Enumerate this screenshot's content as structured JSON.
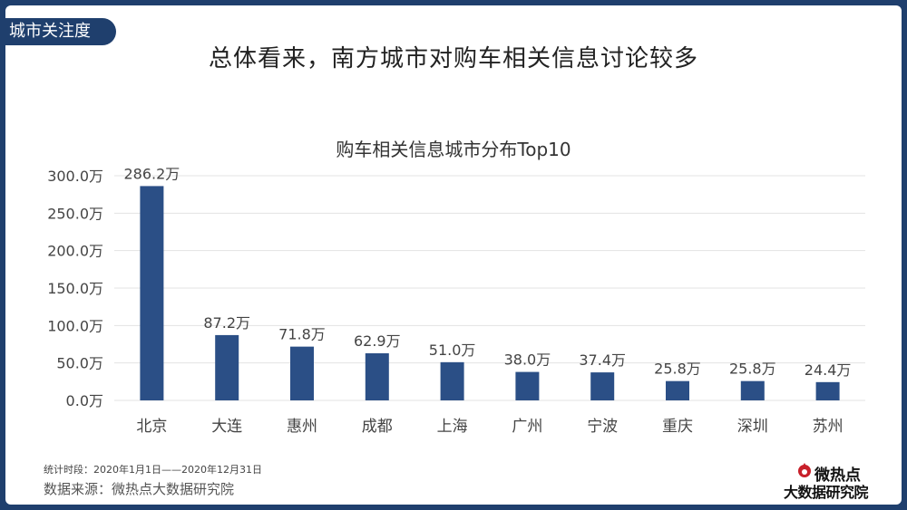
{
  "header": {
    "section_tab": "城市关注度",
    "headline": "总体看来，南方城市对购车相关信息讨论较多"
  },
  "chart_data": {
    "type": "bar",
    "title": "购车相关信息城市分布Top10",
    "categories": [
      "北京",
      "大连",
      "惠州",
      "成都",
      "上海",
      "广州",
      "宁波",
      "重庆",
      "深圳",
      "苏州"
    ],
    "values": [
      286.2,
      87.2,
      71.8,
      62.9,
      51.0,
      38.0,
      37.4,
      25.8,
      25.8,
      24.4
    ],
    "data_labels": [
      "286.2万",
      "87.2万",
      "71.8万",
      "62.9万",
      "51.0万",
      "38.0万",
      "37.4万",
      "25.8万",
      "25.8万",
      "24.4万"
    ],
    "y_ticks": [
      0,
      50,
      100,
      150,
      200,
      250,
      300
    ],
    "y_tick_labels": [
      "0.0万",
      "50.0万",
      "100.0万",
      "150.0万",
      "200.0万",
      "250.0万",
      "300.0万"
    ],
    "ylim": [
      0,
      300
    ],
    "xlabel": "",
    "ylabel": "",
    "grid": true,
    "legend": "none",
    "bar_color": "#2b4f86",
    "grid_color": "#e3e3e3"
  },
  "footer": {
    "period": "统计时段：2020年1月1日——2020年12月31日",
    "source": "数据来源：微热点大数据研究院"
  },
  "logo": {
    "line1": "微热点",
    "line2": "大数据研究院",
    "icon": "flame-icon"
  }
}
